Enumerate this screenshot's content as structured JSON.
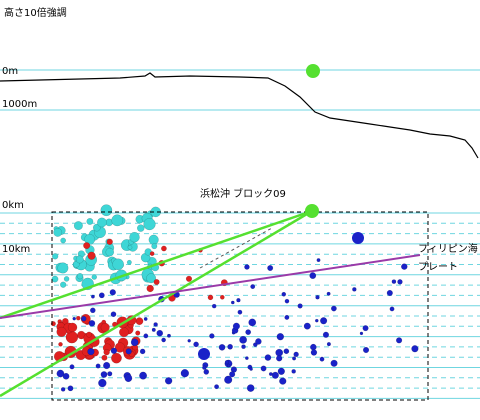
{
  "header": {
    "title": "高さ10倍強調"
  },
  "profile": {
    "labels": [
      "0m",
      "1000m"
    ]
  },
  "section": {
    "title": "浜松沖 ブロック09",
    "labels": [
      "0km",
      "10km"
    ],
    "plate": [
      "フィリピン海",
      "プレート"
    ]
  }
}
